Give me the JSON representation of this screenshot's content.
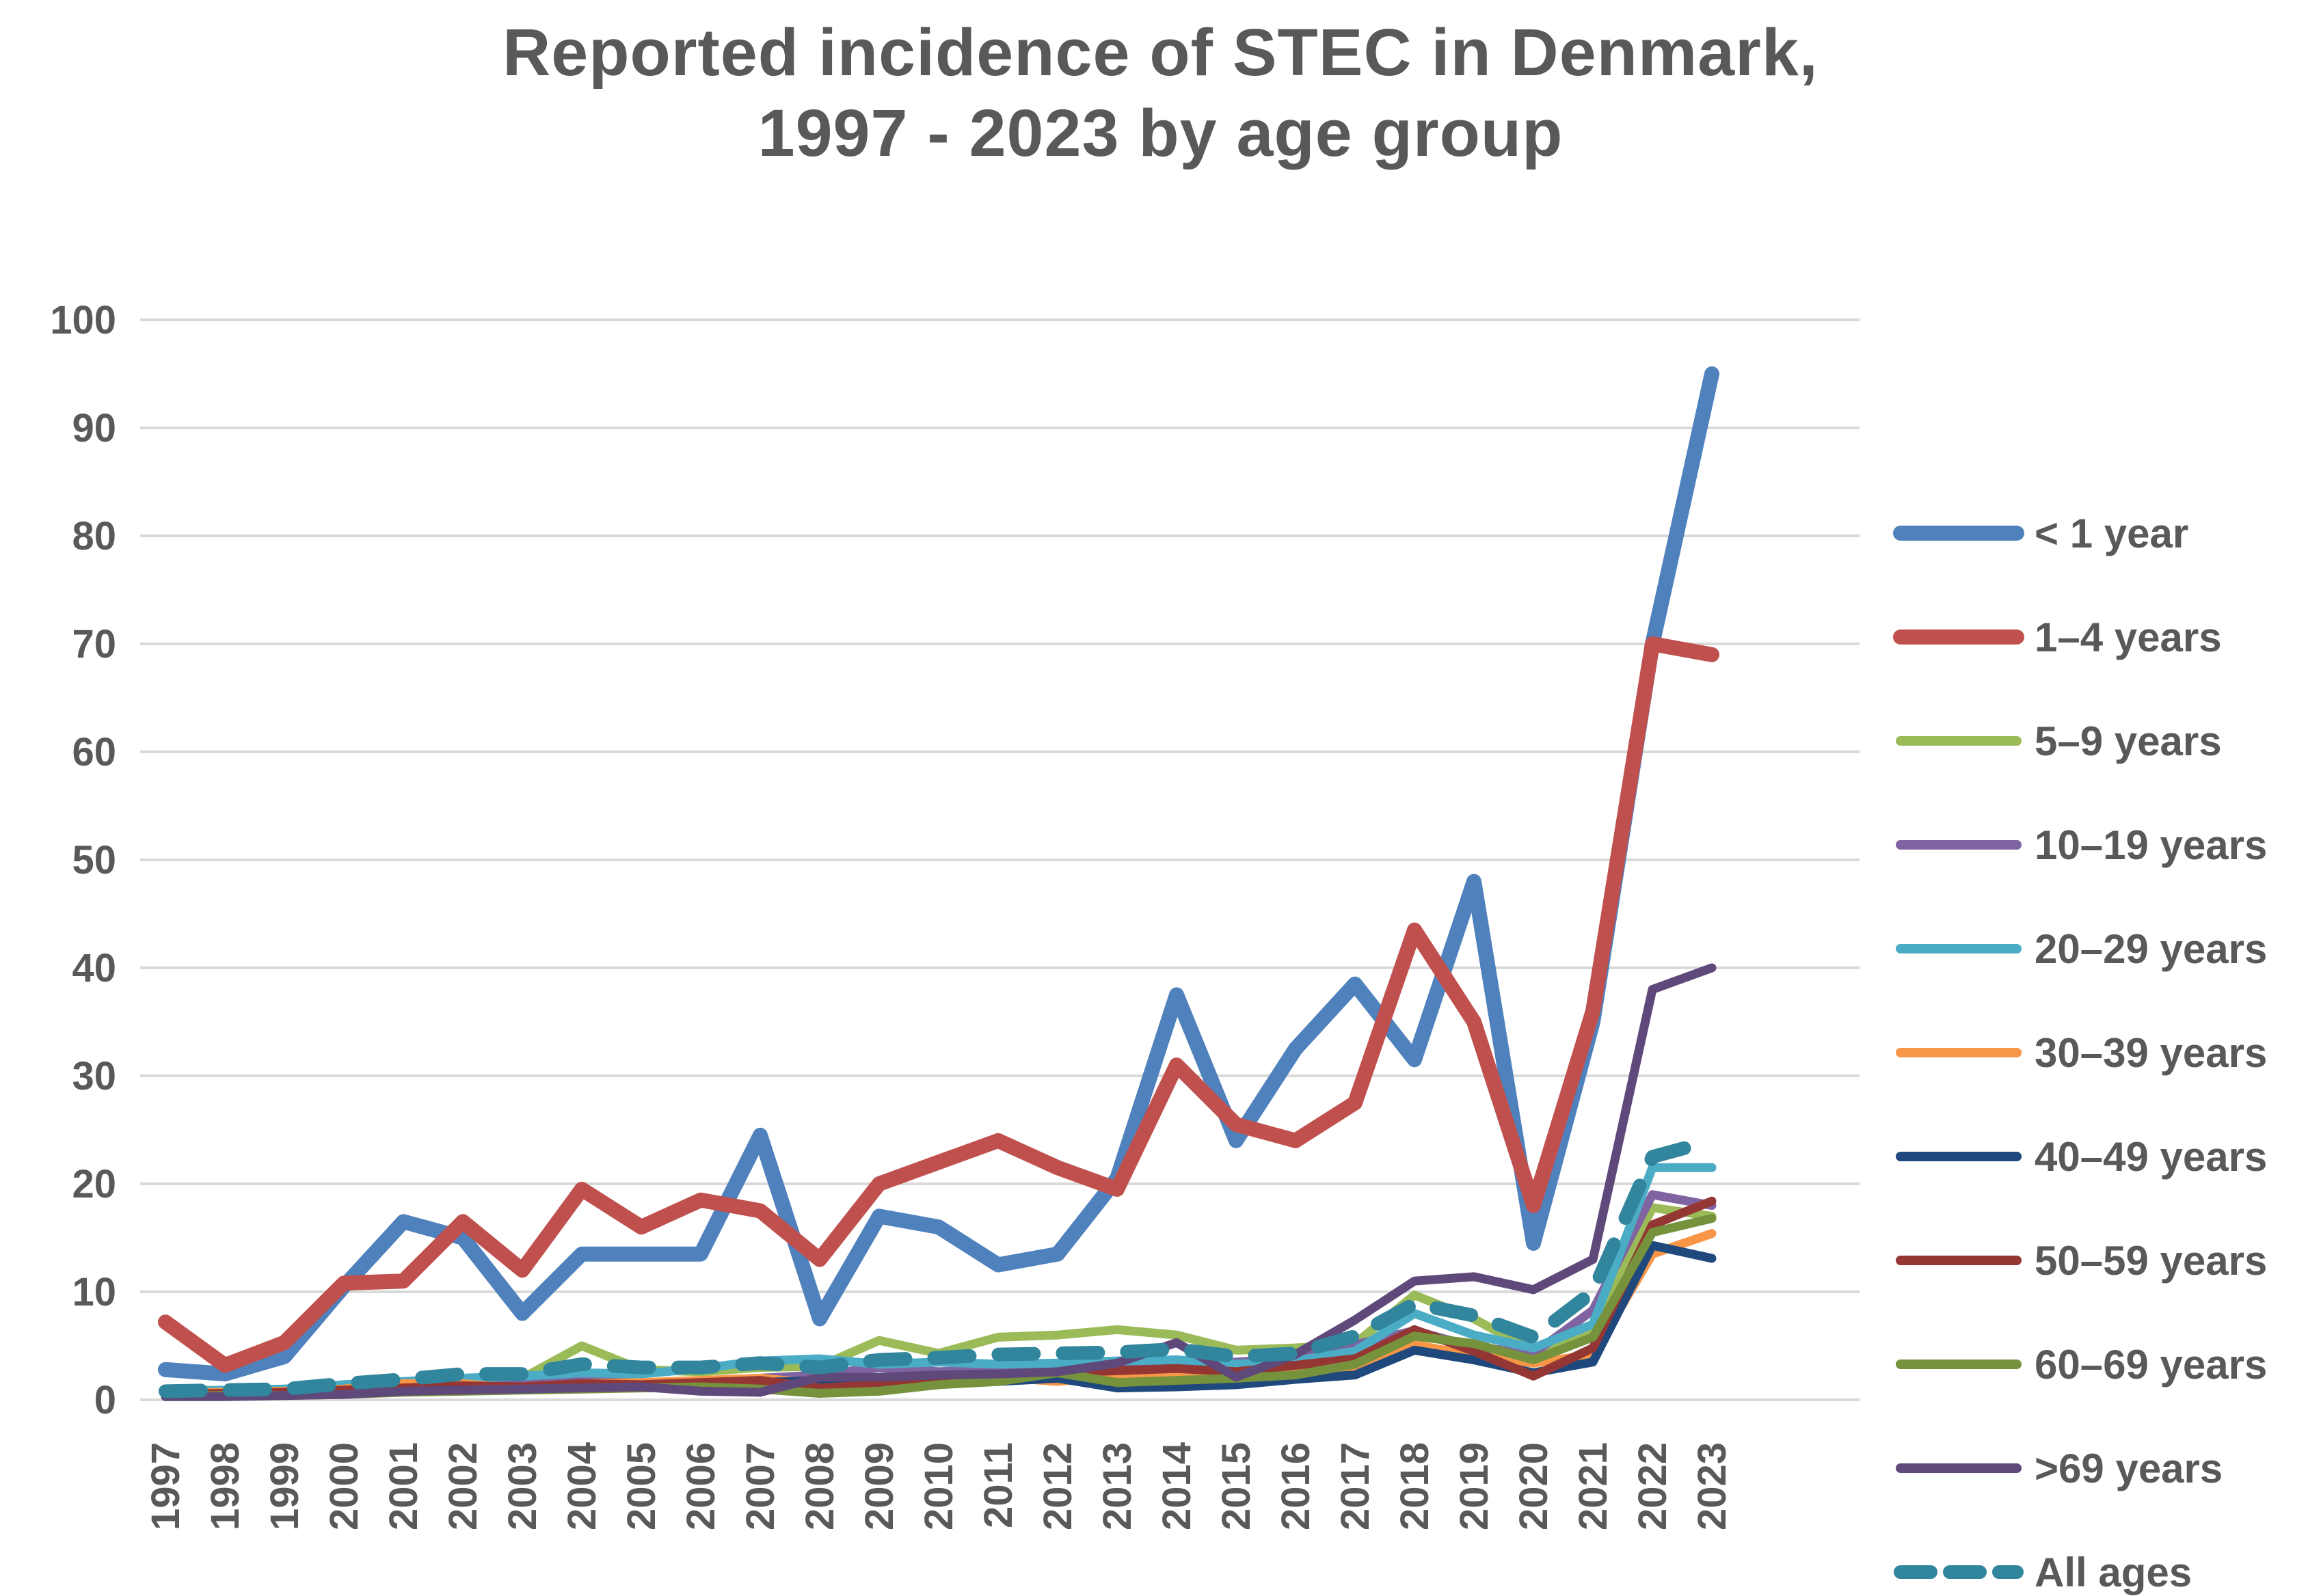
{
  "title": {
    "line1": "Reported incidence of STEC in Denmark,",
    "line2": "1997 - 2023 by age group"
  },
  "chart_data": {
    "type": "line",
    "title": "Reported incidence of STEC in Denmark, 1997 - 2023 by age group",
    "xlabel": "",
    "ylabel": "",
    "ylim": [
      0,
      100
    ],
    "y_ticks": [
      0,
      10,
      20,
      30,
      40,
      50,
      60,
      70,
      80,
      90,
      100
    ],
    "grid": true,
    "legend_position": "right",
    "categories": [
      "1997",
      "1998",
      "1999",
      "2000",
      "2001",
      "2002",
      "2003",
      "2004",
      "2005",
      "2006",
      "2007",
      "2008",
      "2009",
      "2010",
      "2011",
      "2012",
      "2013",
      "2014",
      "2015",
      "2016",
      "2017",
      "2018",
      "2019",
      "2020",
      "2021",
      "2022",
      "2023"
    ],
    "series": [
      {
        "name": "< 1 year",
        "color": "#4F81BD",
        "width": 22,
        "dashed": false,
        "values": [
          2.8,
          2.4,
          4,
          10.5,
          16.5,
          15,
          8,
          13.5,
          13.5,
          13.5,
          24.5,
          7.5,
          17,
          16,
          12.5,
          13.5,
          20.5,
          37.5,
          24,
          32.5,
          38.5,
          31.5,
          48,
          14.5,
          35,
          70,
          95
        ]
      },
      {
        "name": "1–4 years",
        "color": "#C0504D",
        "width": 22,
        "dashed": false,
        "values": [
          7.2,
          3.2,
          5.3,
          10.8,
          11,
          16.5,
          12,
          19.5,
          16,
          18.5,
          17.5,
          13,
          20,
          22,
          24,
          21.5,
          19.5,
          31,
          25.5,
          24,
          27.5,
          43.5,
          35,
          18,
          36,
          70,
          69
        ]
      },
      {
        "name": "5–9 years",
        "color": "#9BBB59",
        "width": 13,
        "dashed": false,
        "values": [
          1.0,
          0.8,
          1.0,
          1.2,
          1.5,
          1.6,
          2.0,
          5.0,
          2.8,
          2.6,
          3.0,
          3.1,
          5.5,
          4.3,
          5.8,
          6.0,
          6.5,
          6.0,
          4.6,
          4.8,
          5.2,
          9.7,
          7.5,
          4.5,
          6.5,
          17.8,
          17.0
        ]
      },
      {
        "name": "10–19 years",
        "color": "#8064A2",
        "width": 13,
        "dashed": false,
        "values": [
          0.5,
          0.6,
          0.7,
          0.9,
          1.2,
          1.3,
          1.5,
          1.8,
          1.6,
          1.7,
          2.0,
          2.3,
          3.0,
          2.6,
          2.8,
          2.7,
          3.0,
          3.0,
          3.5,
          3.8,
          5.1,
          6.4,
          4.9,
          4.3,
          8.3,
          19.0,
          18.0
        ]
      },
      {
        "name": "20–29 years",
        "color": "#4BACC6",
        "width": 13,
        "dashed": false,
        "values": [
          0.8,
          0.9,
          1.0,
          1.4,
          1.7,
          2.0,
          2.2,
          2.5,
          2.4,
          2.9,
          3.6,
          3.8,
          3.3,
          3.5,
          3.3,
          3.4,
          3.6,
          3.7,
          3.3,
          3.6,
          4.5,
          8.0,
          6.0,
          4.8,
          7.0,
          21.5,
          21.5
        ]
      },
      {
        "name": "30–39 years",
        "color": "#F79646",
        "width": 13,
        "dashed": false,
        "values": [
          0.6,
          0.7,
          0.8,
          1.0,
          1.5,
          1.5,
          1.0,
          1.5,
          1.6,
          1.8,
          2.0,
          1.5,
          1.2,
          1.7,
          2.1,
          1.7,
          2.3,
          2.5,
          2.5,
          2.7,
          3.0,
          5.1,
          4.1,
          3.4,
          4.2,
          13.5,
          15.4
        ]
      },
      {
        "name": "40–49 years",
        "color": "#1F497D",
        "width": 13,
        "dashed": false,
        "values": [
          0.4,
          0.5,
          0.6,
          0.8,
          1.0,
          1.2,
          1.1,
          1.3,
          1.2,
          1.4,
          1.6,
          1.8,
          1.7,
          1.6,
          1.7,
          2.0,
          1.1,
          1.2,
          1.4,
          1.9,
          2.3,
          4.6,
          3.7,
          2.5,
          3.5,
          14.3,
          13.1
        ]
      },
      {
        "name": "50–59 years",
        "color": "#943634",
        "width": 13,
        "dashed": false,
        "values": [
          0.5,
          0.6,
          0.7,
          0.9,
          1.1,
          1.3,
          1.2,
          1.5,
          1.4,
          1.6,
          1.8,
          1.1,
          1.4,
          1.7,
          2.1,
          2.5,
          2.7,
          2.9,
          2.6,
          3.2,
          3.8,
          6.5,
          4.5,
          2.2,
          4.8,
          16.2,
          18.4
        ]
      },
      {
        "name": "60–69 years",
        "color": "#76923C",
        "width": 13,
        "dashed": false,
        "values": [
          0.3,
          0.4,
          0.4,
          0.5,
          0.7,
          0.8,
          0.9,
          1.0,
          1.1,
          1.2,
          1.0,
          0.6,
          0.8,
          1.4,
          1.7,
          2.5,
          1.6,
          1.8,
          2.0,
          2.3,
          3.3,
          5.9,
          5.2,
          3.7,
          5.8,
          15.5,
          16.8
        ]
      },
      {
        "name": ">69 years",
        "color": "#5F497A",
        "width": 13,
        "dashed": false,
        "values": [
          0.3,
          0.3,
          0.4,
          0.5,
          0.8,
          0.9,
          1.0,
          1.1,
          1.2,
          0.8,
          0.7,
          2.1,
          2.1,
          2.3,
          2.4,
          2.6,
          3.4,
          5.3,
          2.1,
          4.2,
          7.4,
          11.0,
          11.4,
          10.2,
          13.0,
          38.0,
          40.0
        ]
      },
      {
        "name": "All ages",
        "color": "#31859C",
        "width": 20,
        "dashed": true,
        "values": [
          0.8,
          0.9,
          1.0,
          1.5,
          1.9,
          2.4,
          2.4,
          3.3,
          3.0,
          3.0,
          3.4,
          3.0,
          3.7,
          3.9,
          4.2,
          4.3,
          4.4,
          4.7,
          4.0,
          4.3,
          5.9,
          8.9,
          7.8,
          5.8,
          10.0,
          22.5,
          24.0
        ]
      }
    ]
  },
  "style": {
    "grid_color": "#D9D9D9",
    "label_color": "#595959",
    "background": "#FFFFFF"
  }
}
